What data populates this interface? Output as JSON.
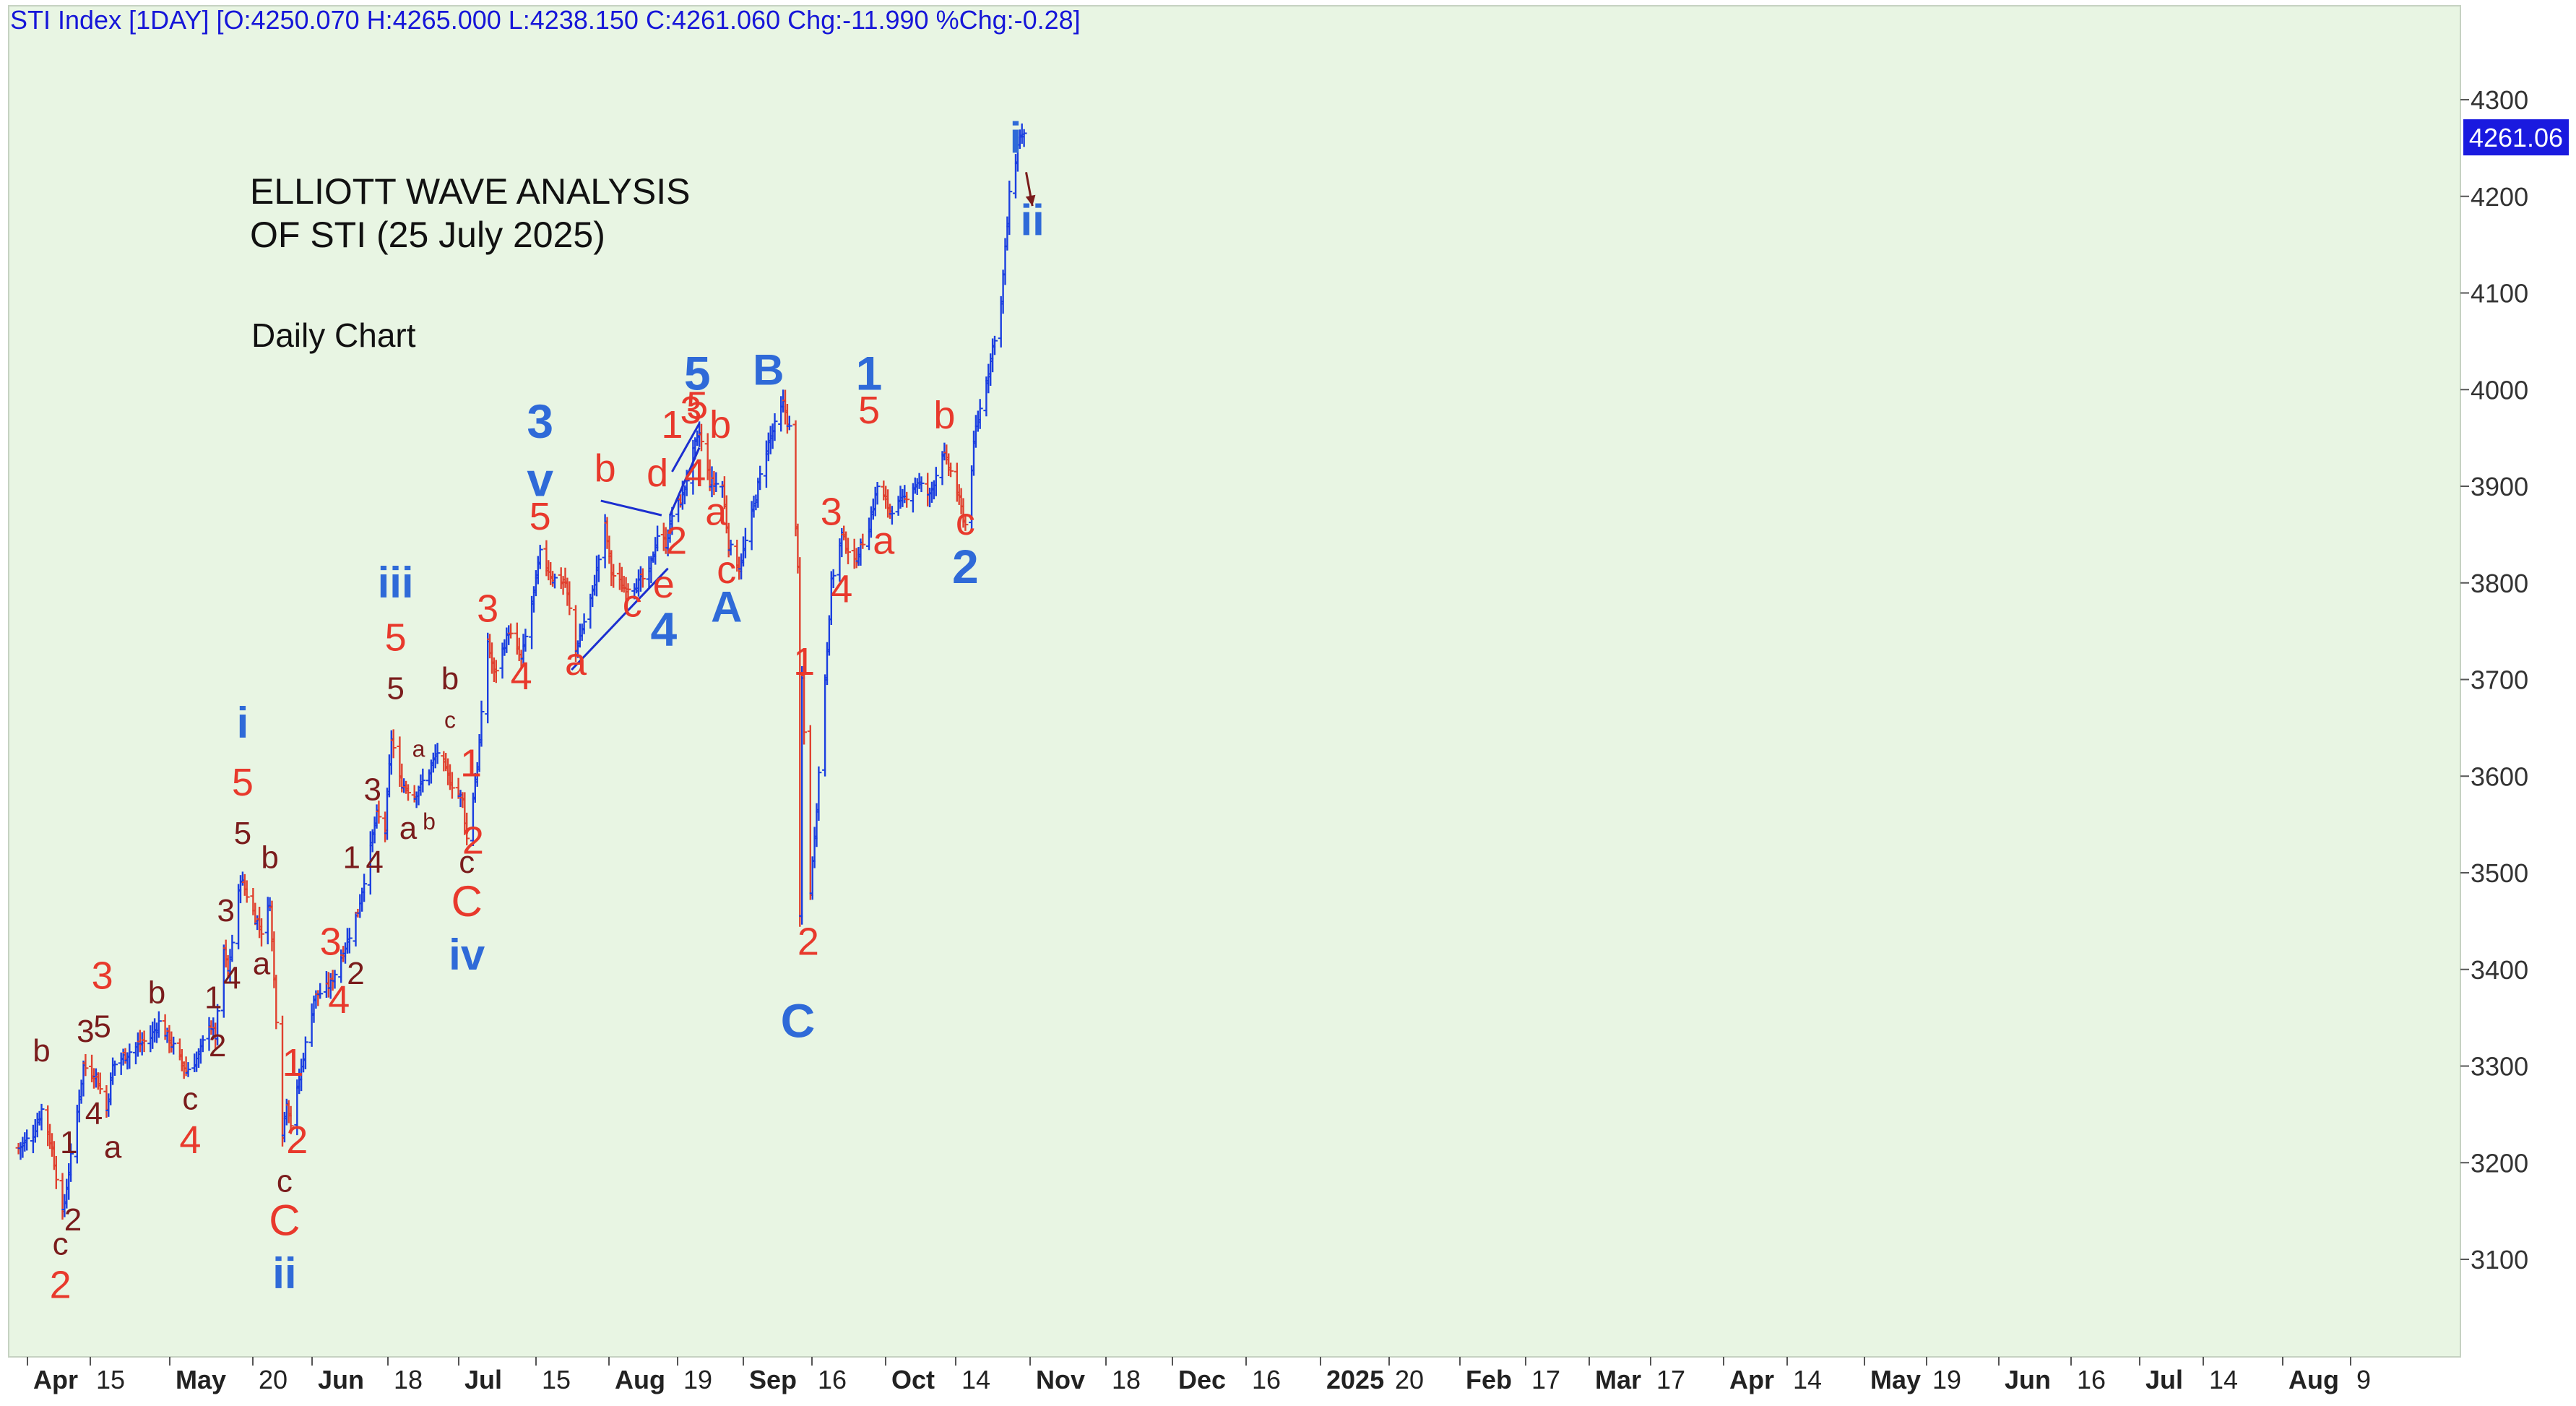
{
  "chart_data": {
    "type": "ohlc",
    "header": "STI Index [1DAY] [O:4250.070 H:4265.000 L:4238.150 C:4261.060 Chg:-11.990 %Chg:-0.28]",
    "title_lines": [
      "ELLIOTT WAVE ANALYSIS",
      "OF STI (25 July 2025)"
    ],
    "subtitle": "Daily Chart",
    "last_price_label": "4261.06",
    "y_ticks": [
      "3100",
      "3200",
      "3300",
      "3400",
      "3500",
      "3600",
      "3700",
      "3800",
      "3900",
      "4000",
      "4100",
      "4200",
      "4300"
    ],
    "ylim": [
      3000,
      4340
    ],
    "x_ticks": [
      {
        "label": "Apr",
        "bold": true
      },
      {
        "label": "15",
        "bold": false
      },
      {
        "label": "May",
        "bold": true
      },
      {
        "label": "20",
        "bold": false
      },
      {
        "label": "Jun",
        "bold": true
      },
      {
        "label": "18",
        "bold": false
      },
      {
        "label": "Jul",
        "bold": true
      },
      {
        "label": "15",
        "bold": false
      },
      {
        "label": "Aug",
        "bold": true
      },
      {
        "label": "19",
        "bold": false
      },
      {
        "label": "Sep",
        "bold": true
      },
      {
        "label": "16",
        "bold": false
      },
      {
        "label": "Oct",
        "bold": true
      },
      {
        "label": "14",
        "bold": false
      },
      {
        "label": "Nov",
        "bold": true
      },
      {
        "label": "18",
        "bold": false
      },
      {
        "label": "Dec",
        "bold": true
      },
      {
        "label": "16",
        "bold": false
      },
      {
        "label": "2025",
        "bold": true
      },
      {
        "label": "20",
        "bold": false
      },
      {
        "label": "Feb",
        "bold": true
      },
      {
        "label": "17",
        "bold": false
      },
      {
        "label": "Mar",
        "bold": true
      },
      {
        "label": "17",
        "bold": false
      },
      {
        "label": "Apr",
        "bold": true
      },
      {
        "label": "14",
        "bold": false
      },
      {
        "label": "May",
        "bold": true
      },
      {
        "label": "19",
        "bold": false
      },
      {
        "label": "Jun",
        "bold": true
      },
      {
        "label": "16",
        "bold": false
      },
      {
        "label": "Jul",
        "bold": true
      },
      {
        "label": "14",
        "bold": false
      },
      {
        "label": "Aug",
        "bold": true
      },
      {
        "label": "9",
        "bold": false
      }
    ],
    "price_path": [
      [
        "2024-04-01",
        3215
      ],
      [
        "2024-04-08",
        3230
      ],
      [
        "2024-04-12",
        3255
      ],
      [
        "2024-04-17",
        3215
      ],
      [
        "2024-04-22",
        3145
      ],
      [
        "2024-04-26",
        3205
      ],
      [
        "2024-05-02",
        3300
      ],
      [
        "2024-05-08",
        3290
      ],
      [
        "2024-05-13",
        3255
      ],
      [
        "2024-05-16",
        3300
      ],
      [
        "2024-05-24",
        3315
      ],
      [
        "2024-06-03",
        3330
      ],
      [
        "2024-06-07",
        3345
      ],
      [
        "2024-06-14",
        3320
      ],
      [
        "2024-06-20",
        3295
      ],
      [
        "2024-06-26",
        3310
      ],
      [
        "2024-07-01",
        3345
      ],
      [
        "2024-07-04",
        3330
      ],
      [
        "2024-07-08",
        3420
      ],
      [
        "2024-07-10",
        3395
      ],
      [
        "2024-07-16",
        3495
      ],
      [
        "2024-07-22",
        3460
      ],
      [
        "2024-07-26",
        3440
      ],
      [
        "2024-07-30",
        3470
      ],
      [
        "2024-08-05",
        3230
      ],
      [
        "2024-08-07",
        3265
      ],
      [
        "2024-08-09",
        3240
      ],
      [
        "2024-08-15",
        3310
      ],
      [
        "2024-08-20",
        3370
      ],
      [
        "2024-08-28",
        3385
      ],
      [
        "2024-09-05",
        3430
      ],
      [
        "2024-09-10",
        3460
      ],
      [
        "2024-09-19",
        3560
      ],
      [
        "2024-09-23",
        3545
      ],
      [
        "2024-09-26",
        3640
      ],
      [
        "2024-09-30",
        3595
      ],
      [
        "2024-10-07",
        3580
      ],
      [
        "2024-10-14",
        3605
      ],
      [
        "2024-10-18",
        3625
      ],
      [
        "2024-10-24",
        3595
      ],
      [
        "2024-10-30",
        3575
      ],
      [
        "2024-11-01",
        3535
      ],
      [
        "2024-11-06",
        3610
      ],
      [
        "2024-11-11",
        3740
      ],
      [
        "2024-11-14",
        3705
      ],
      [
        "2024-11-21",
        3750
      ],
      [
        "2024-11-27",
        3720
      ],
      [
        "2024-12-03",
        3790
      ],
      [
        "2024-12-06",
        3830
      ],
      [
        "2024-12-12",
        3805
      ],
      [
        "2024-12-18",
        3800
      ],
      [
        "2024-12-23",
        3730
      ],
      [
        "2024-12-31",
        3790
      ],
      [
        "2025-01-06",
        3860
      ],
      [
        "2025-01-09",
        3810
      ],
      [
        "2025-01-15",
        3795
      ],
      [
        "2025-01-22",
        3800
      ],
      [
        "2025-01-27",
        3810
      ],
      [
        "2025-01-31",
        3850
      ],
      [
        "2025-02-04",
        3840
      ],
      [
        "2025-02-07",
        3870
      ],
      [
        "2025-02-12",
        3890
      ],
      [
        "2025-02-17",
        3935
      ],
      [
        "2025-02-20",
        3955
      ],
      [
        "2025-02-25",
        3905
      ],
      [
        "2025-03-03",
        3900
      ],
      [
        "2025-03-06",
        3840
      ],
      [
        "2025-03-11",
        3815
      ],
      [
        "2025-03-17",
        3870
      ],
      [
        "2025-03-24",
        3940
      ],
      [
        "2025-04-01",
        3985
      ],
      [
        "2025-04-04",
        3960
      ],
      [
        "2025-04-08",
        3820
      ],
      [
        "2025-04-09",
        3450
      ],
      [
        "2025-04-10",
        3700
      ],
      [
        "2025-04-14",
        3480
      ],
      [
        "2025-04-17",
        3570
      ],
      [
        "2025-04-24",
        3800
      ],
      [
        "2025-04-29",
        3850
      ],
      [
        "2025-05-05",
        3820
      ],
      [
        "2025-05-12",
        3860
      ],
      [
        "2025-05-16",
        3900
      ],
      [
        "2025-05-22",
        3875
      ],
      [
        "2025-05-28",
        3885
      ],
      [
        "2025-06-04",
        3905
      ],
      [
        "2025-06-10",
        3890
      ],
      [
        "2025-06-16",
        3935
      ],
      [
        "2025-06-20",
        3915
      ],
      [
        "2025-06-24",
        3885
      ],
      [
        "2025-06-27",
        3860
      ],
      [
        "2025-07-02",
        3960
      ],
      [
        "2025-07-08",
        4020
      ],
      [
        "2025-07-14",
        4090
      ],
      [
        "2025-07-18",
        4200
      ],
      [
        "2025-07-23",
        4265
      ],
      [
        "2025-07-25",
        4261
      ]
    ],
    "wave_labels": [
      {
        "t": "b",
        "d": "2024-04-12",
        "p": 3305,
        "c": "dark",
        "s": 44
      },
      {
        "t": "1",
        "d": "2024-04-25",
        "p": 3210,
        "c": "dark",
        "s": 44
      },
      {
        "t": "2",
        "d": "2024-04-27",
        "p": 3130,
        "c": "dark",
        "s": 44
      },
      {
        "t": "c",
        "d": "2024-04-21",
        "p": 3105,
        "c": "dark",
        "s": 44
      },
      {
        "t": "2",
        "d": "2024-04-21",
        "p": 3060,
        "c": "red",
        "s": 54
      },
      {
        "t": "3",
        "d": "2024-05-03",
        "p": 3325,
        "c": "dark",
        "s": 44
      },
      {
        "t": "4",
        "d": "2024-05-07",
        "p": 3240,
        "c": "dark",
        "s": 44
      },
      {
        "t": "3",
        "d": "2024-05-11",
        "p": 3380,
        "c": "red",
        "s": 54
      },
      {
        "t": "5",
        "d": "2024-05-11",
        "p": 3330,
        "c": "dark",
        "s": 44
      },
      {
        "t": "a",
        "d": "2024-05-16",
        "p": 3205,
        "c": "dark",
        "s": 44
      },
      {
        "t": "b",
        "d": "2024-06-06",
        "p": 3365,
        "c": "dark",
        "s": 44
      },
      {
        "t": "c",
        "d": "2024-06-22",
        "p": 3255,
        "c": "dark",
        "s": 44
      },
      {
        "t": "4",
        "d": "2024-06-22",
        "p": 3210,
        "c": "red",
        "s": 54
      },
      {
        "t": "1",
        "d": "2024-07-03",
        "p": 3360,
        "c": "dark",
        "s": 44
      },
      {
        "t": "2",
        "d": "2024-07-05",
        "p": 3310,
        "c": "dark",
        "s": 44
      },
      {
        "t": "3",
        "d": "2024-07-09",
        "p": 3450,
        "c": "dark",
        "s": 44
      },
      {
        "t": "4",
        "d": "2024-07-12",
        "p": 3380,
        "c": "dark",
        "s": 44
      },
      {
        "t": "i",
        "d": "2024-07-17",
        "p": 3640,
        "c": "blue",
        "s": 60
      },
      {
        "t": "5",
        "d": "2024-07-17",
        "p": 3580,
        "c": "red",
        "s": 54
      },
      {
        "t": "5",
        "d": "2024-07-17",
        "p": 3530,
        "c": "dark",
        "s": 44
      },
      {
        "t": "b",
        "d": "2024-07-30",
        "p": 3505,
        "c": "dark",
        "s": 44
      },
      {
        "t": "a",
        "d": "2024-07-26",
        "p": 3395,
        "c": "dark",
        "s": 44
      },
      {
        "t": "1",
        "d": "2024-08-10",
        "p": 3290,
        "c": "red",
        "s": 54
      },
      {
        "t": "2",
        "d": "2024-08-12",
        "p": 3210,
        "c": "red",
        "s": 54
      },
      {
        "t": "c",
        "d": "2024-08-06",
        "p": 3170,
        "c": "dark",
        "s": 44
      },
      {
        "t": "C",
        "d": "2024-08-06",
        "p": 3125,
        "c": "red",
        "s": 60
      },
      {
        "t": "ii",
        "d": "2024-08-06",
        "p": 3070,
        "c": "blue",
        "s": 60
      },
      {
        "t": "3",
        "d": "2024-08-28",
        "p": 3415,
        "c": "red",
        "s": 54
      },
      {
        "t": "4",
        "d": "2024-09-01",
        "p": 3355,
        "c": "red",
        "s": 54
      },
      {
        "t": "1",
        "d": "2024-09-07",
        "p": 3505,
        "c": "dark",
        "s": 44
      },
      {
        "t": "2",
        "d": "2024-09-09",
        "p": 3385,
        "c": "dark",
        "s": 44
      },
      {
        "t": "3",
        "d": "2024-09-17",
        "p": 3575,
        "c": "dark",
        "s": 44
      },
      {
        "t": "4",
        "d": "2024-09-18",
        "p": 3500,
        "c": "dark",
        "s": 44
      },
      {
        "t": "iii",
        "d": "2024-09-28",
        "p": 3785,
        "c": "blue",
        "s": 60
      },
      {
        "t": "5",
        "d": "2024-09-28",
        "p": 3730,
        "c": "red",
        "s": 54
      },
      {
        "t": "5",
        "d": "2024-09-28",
        "p": 3680,
        "c": "dark",
        "s": 44
      },
      {
        "t": "a",
        "d": "2024-10-04",
        "p": 3535,
        "c": "dark",
        "s": 44
      },
      {
        "t": "a",
        "d": "2024-10-09",
        "p": 3620,
        "c": "dark",
        "s": 32
      },
      {
        "t": "b",
        "d": "2024-10-14",
        "p": 3545,
        "c": "dark",
        "s": 32
      },
      {
        "t": "c",
        "d": "2024-10-24",
        "p": 3650,
        "c": "dark",
        "s": 32
      },
      {
        "t": "b",
        "d": "2024-10-24",
        "p": 3690,
        "c": "dark",
        "s": 44
      },
      {
        "t": "1",
        "d": "2024-11-03",
        "p": 3600,
        "c": "red",
        "s": 54
      },
      {
        "t": "2",
        "d": "2024-11-04",
        "p": 3520,
        "c": "red",
        "s": 54
      },
      {
        "t": "c",
        "d": "2024-11-01",
        "p": 3500,
        "c": "dark",
        "s": 44
      },
      {
        "t": "C",
        "d": "2024-11-01",
        "p": 3455,
        "c": "red",
        "s": 60
      },
      {
        "t": "iv",
        "d": "2024-11-01",
        "p": 3400,
        "c": "blue",
        "s": 60
      },
      {
        "t": "3",
        "d": "2024-11-11",
        "p": 3760,
        "c": "red",
        "s": 54
      },
      {
        "t": "4",
        "d": "2024-11-27",
        "p": 3690,
        "c": "red",
        "s": 54
      },
      {
        "t": "3",
        "d": "2024-12-06",
        "p": 3950,
        "c": "blue",
        "s": 66
      },
      {
        "t": "v",
        "d": "2024-12-06",
        "p": 3890,
        "c": "blue",
        "s": 66
      },
      {
        "t": "5",
        "d": "2024-12-06",
        "p": 3855,
        "c": "red",
        "s": 54
      },
      {
        "t": "a",
        "d": "2024-12-23",
        "p": 3705,
        "c": "red",
        "s": 54
      },
      {
        "t": "b",
        "d": "2025-01-06",
        "p": 3905,
        "c": "red",
        "s": 54
      },
      {
        "t": "c",
        "d": "2025-01-19",
        "p": 3765,
        "c": "red",
        "s": 54
      },
      {
        "t": "d",
        "d": "2025-01-31",
        "p": 3900,
        "c": "red",
        "s": 54
      },
      {
        "t": "e",
        "d": "2025-02-03",
        "p": 3785,
        "c": "red",
        "s": 54
      },
      {
        "t": "4",
        "d": "2025-02-03",
        "p": 3735,
        "c": "blue",
        "s": 66
      },
      {
        "t": "1",
        "d": "2025-02-07",
        "p": 3950,
        "c": "red",
        "s": 54
      },
      {
        "t": "2",
        "d": "2025-02-09",
        "p": 3830,
        "c": "red",
        "s": 54
      },
      {
        "t": "3",
        "d": "2025-02-16",
        "p": 3965,
        "c": "red",
        "s": 54
      },
      {
        "t": "5",
        "d": "2025-02-19",
        "p": 3970,
        "c": "red",
        "s": 54
      },
      {
        "t": "4",
        "d": "2025-02-18",
        "p": 3900,
        "c": "red",
        "s": 54
      },
      {
        "t": "5",
        "d": "2025-02-19",
        "p": 4000,
        "c": "blue",
        "s": 66
      },
      {
        "t": "b",
        "d": "2025-03-02",
        "p": 3950,
        "c": "red",
        "s": 54
      },
      {
        "t": "a",
        "d": "2025-02-28",
        "p": 3860,
        "c": "red",
        "s": 54
      },
      {
        "t": "c",
        "d": "2025-03-05",
        "p": 3800,
        "c": "red",
        "s": 54
      },
      {
        "t": "A",
        "d": "2025-03-05",
        "p": 3760,
        "c": "blue",
        "s": 60
      },
      {
        "t": "B",
        "d": "2025-03-25",
        "p": 4005,
        "c": "blue",
        "s": 60
      },
      {
        "t": "1",
        "d": "2025-04-11",
        "p": 3705,
        "c": "red",
        "s": 54
      },
      {
        "t": "2",
        "d": "2025-04-13",
        "p": 3415,
        "c": "red",
        "s": 54
      },
      {
        "t": "C",
        "d": "2025-04-08",
        "p": 3330,
        "c": "blue",
        "s": 66
      },
      {
        "t": "3",
        "d": "2025-04-24",
        "p": 3860,
        "c": "red",
        "s": 54
      },
      {
        "t": "4",
        "d": "2025-04-29",
        "p": 3780,
        "c": "red",
        "s": 54
      },
      {
        "t": "1",
        "d": "2025-05-12",
        "p": 4000,
        "c": "blue",
        "s": 66
      },
      {
        "t": "5",
        "d": "2025-05-12",
        "p": 3965,
        "c": "red",
        "s": 54
      },
      {
        "t": "a",
        "d": "2025-05-19",
        "p": 3830,
        "c": "red",
        "s": 54
      },
      {
        "t": "b",
        "d": "2025-06-17",
        "p": 3960,
        "c": "red",
        "s": 54
      },
      {
        "t": "c",
        "d": "2025-06-27",
        "p": 3850,
        "c": "red",
        "s": 54
      },
      {
        "t": "2",
        "d": "2025-06-27",
        "p": 3800,
        "c": "blue",
        "s": 66
      },
      {
        "t": "i",
        "d": "2025-07-21",
        "p": 4245,
        "c": "blue",
        "s": 60
      },
      {
        "t": "ii",
        "d": "2025-07-29",
        "p": 4160,
        "c": "blue",
        "s": 60
      }
    ],
    "trendlines": [
      {
        "from": [
          "2024-12-21",
          3710
        ],
        "to": [
          "2025-02-05",
          3815
        ]
      },
      {
        "from": [
          "2025-01-04",
          3885
        ],
        "to": [
          "2025-02-02",
          3870
        ]
      },
      {
        "from": [
          "2025-02-06",
          3870
        ],
        "to": [
          "2025-02-20",
          3940
        ]
      },
      {
        "from": [
          "2025-02-07",
          3915
        ],
        "to": [
          "2025-02-20",
          3965
        ]
      }
    ],
    "arrow": {
      "from": [
        "2025-07-26",
        4225
      ],
      "to": [
        "2025-07-29",
        4190
      ]
    }
  }
}
